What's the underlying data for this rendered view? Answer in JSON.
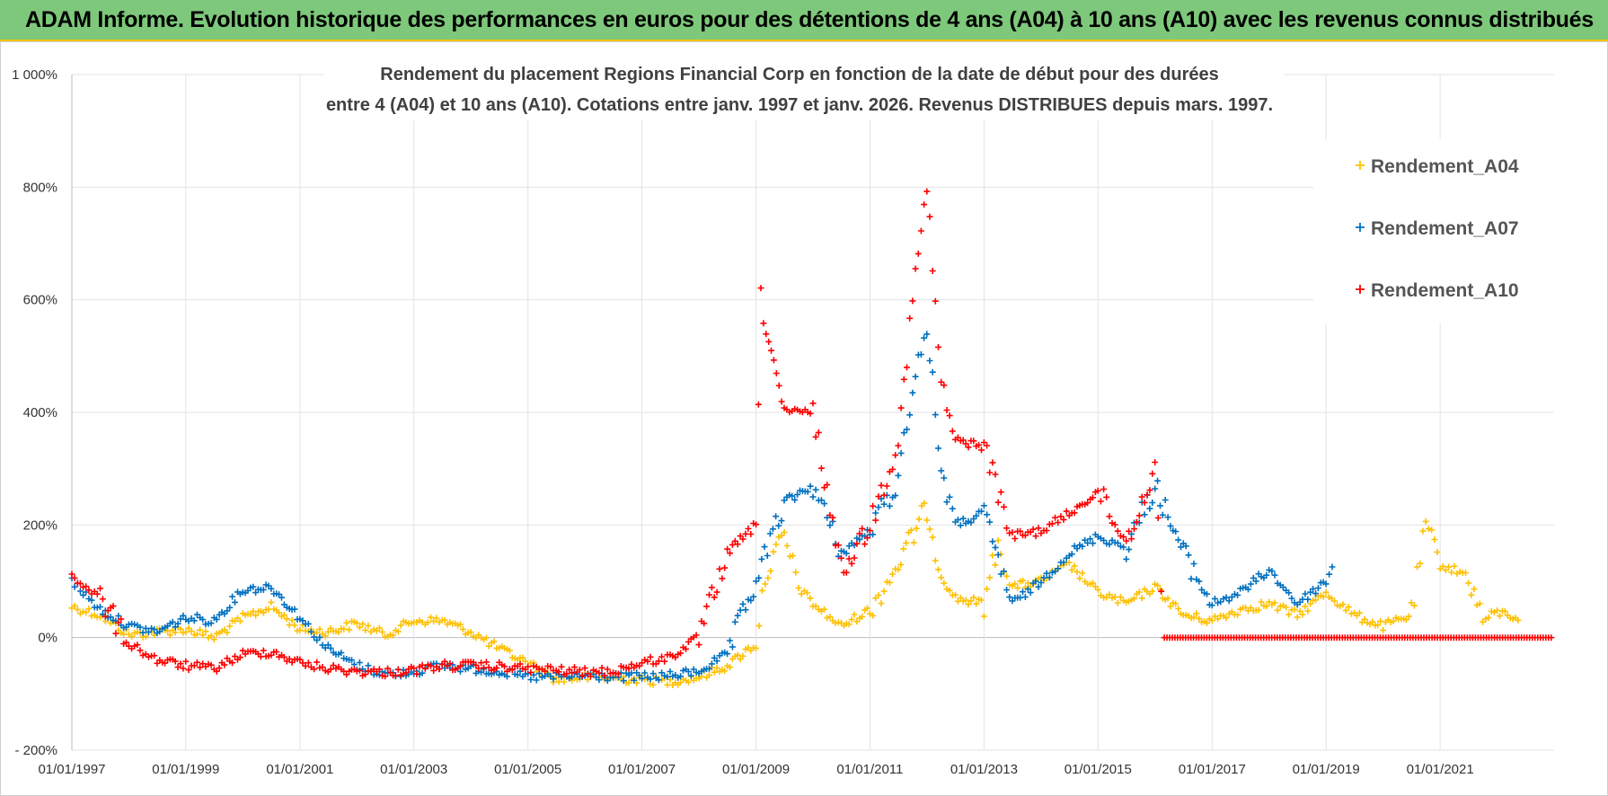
{
  "header": {
    "title": "ADAM Informe. Evolution historique des performances en euros pour des détentions de 4 ans (A04) à 10 ans (A10) avec les revenus connus distribués"
  },
  "colors": {
    "banner": "#7dc87a",
    "banner_line": "#f2c200",
    "A04": "#ffc000",
    "A07": "#0070c0",
    "A10": "#ff0000"
  },
  "chart_data": {
    "type": "scatter",
    "title_lines": [
      "Rendement du placement Regions Financial Corp en fonction de la date de début pour des durées",
      "entre 4 (A04) et 10 ans (A10).  Cotations entre janv. 1997 et janv. 2026. Revenus DISTRIBUES depuis mars. 1997."
    ],
    "xlabel": "",
    "ylabel": "",
    "xlim": [
      "1997-01-01",
      "2023-01-01"
    ],
    "ylim": [
      -200,
      1000
    ],
    "y_ticks": [
      -200,
      0,
      200,
      400,
      600,
      800,
      1000
    ],
    "y_tick_labels": [
      "- 200%",
      "0%",
      "200%",
      "400%",
      "600%",
      "800%",
      "1 000%"
    ],
    "x_tick_labels": [
      "01/01/1997",
      "01/01/1999",
      "01/01/2001",
      "01/01/2003",
      "01/01/2005",
      "01/01/2007",
      "01/01/2009",
      "01/01/2011",
      "01/01/2013",
      "01/01/2015",
      "01/01/2017",
      "01/01/2019",
      "01/01/2021"
    ],
    "grid": true,
    "legend": "top-right",
    "marker": "+",
    "series": [
      {
        "name": "Rendement_A04",
        "points": [
          [
            "1997-01-01",
            55
          ],
          [
            "1997-07-01",
            40
          ],
          [
            "1998-01-01",
            5
          ],
          [
            "1998-07-01",
            10
          ],
          [
            "1999-01-01",
            15
          ],
          [
            "1999-07-01",
            0
          ],
          [
            "2000-01-01",
            35
          ],
          [
            "2000-07-01",
            55
          ],
          [
            "2001-01-01",
            15
          ],
          [
            "2001-07-01",
            10
          ],
          [
            "2002-01-01",
            25
          ],
          [
            "2002-07-01",
            5
          ],
          [
            "2003-01-01",
            30
          ],
          [
            "2003-07-01",
            30
          ],
          [
            "2004-01-01",
            10
          ],
          [
            "2004-07-01",
            -20
          ],
          [
            "2005-01-01",
            -45
          ],
          [
            "2005-07-01",
            -75
          ],
          [
            "2006-01-01",
            -70
          ],
          [
            "2006-07-01",
            -72
          ],
          [
            "2007-01-01",
            -75
          ],
          [
            "2007-07-01",
            -78
          ],
          [
            "2008-01-01",
            -70
          ],
          [
            "2008-07-01",
            -50
          ],
          [
            "2009-01-01",
            -10
          ],
          [
            "2009-03-01",
            110
          ],
          [
            "2009-07-01",
            180
          ],
          [
            "2009-10-01",
            90
          ],
          [
            "2010-01-01",
            60
          ],
          [
            "2010-07-01",
            20
          ],
          [
            "2011-01-01",
            50
          ],
          [
            "2011-07-01",
            130
          ],
          [
            "2012-01-01",
            230
          ],
          [
            "2012-04-01",
            110
          ],
          [
            "2012-07-01",
            70
          ],
          [
            "2013-01-01",
            60
          ],
          [
            "2013-04-01",
            170
          ],
          [
            "2013-07-01",
            90
          ],
          [
            "2014-01-01",
            100
          ],
          [
            "2014-07-01",
            130
          ],
          [
            "2015-01-01",
            80
          ],
          [
            "2015-07-01",
            60
          ],
          [
            "2016-01-01",
            90
          ],
          [
            "2016-07-01",
            40
          ],
          [
            "2017-01-01",
            30
          ],
          [
            "2017-07-01",
            50
          ],
          [
            "2018-01-01",
            60
          ],
          [
            "2018-07-01",
            40
          ],
          [
            "2019-01-01",
            80
          ],
          [
            "2019-07-01",
            40
          ],
          [
            "2020-01-01",
            20
          ],
          [
            "2020-07-01",
            40
          ],
          [
            "2020-10-01",
            200
          ],
          [
            "2021-01-01",
            130
          ],
          [
            "2021-07-01",
            110
          ],
          [
            "2021-10-01",
            30
          ],
          [
            "2022-01-01",
            45
          ],
          [
            "2022-06-01",
            35
          ]
        ]
      },
      {
        "name": "Rendement_A07",
        "points": [
          [
            "1997-01-01",
            100
          ],
          [
            "1997-07-01",
            50
          ],
          [
            "1998-01-01",
            20
          ],
          [
            "1998-07-01",
            10
          ],
          [
            "1999-01-01",
            35
          ],
          [
            "1999-07-01",
            30
          ],
          [
            "2000-01-01",
            85
          ],
          [
            "2000-07-01",
            90
          ],
          [
            "2001-01-01",
            35
          ],
          [
            "2001-07-01",
            -20
          ],
          [
            "2002-01-01",
            -50
          ],
          [
            "2002-07-01",
            -65
          ],
          [
            "2003-01-01",
            -60
          ],
          [
            "2003-07-01",
            -50
          ],
          [
            "2004-01-01",
            -55
          ],
          [
            "2004-07-01",
            -60
          ],
          [
            "2005-01-01",
            -70
          ],
          [
            "2005-07-01",
            -70
          ],
          [
            "2006-01-01",
            -68
          ],
          [
            "2006-07-01",
            -70
          ],
          [
            "2007-01-01",
            -70
          ],
          [
            "2007-07-01",
            -68
          ],
          [
            "2008-01-01",
            -60
          ],
          [
            "2008-07-01",
            -30
          ],
          [
            "2009-01-01",
            100
          ],
          [
            "2009-07-01",
            240
          ],
          [
            "2010-01-01",
            270
          ],
          [
            "2010-07-01",
            150
          ],
          [
            "2011-01-01",
            190
          ],
          [
            "2011-07-01",
            280
          ],
          [
            "2011-10-01",
            450
          ],
          [
            "2012-01-01",
            550
          ],
          [
            "2012-04-01",
            300
          ],
          [
            "2012-07-01",
            200
          ],
          [
            "2013-01-01",
            220
          ],
          [
            "2013-07-01",
            60
          ],
          [
            "2014-01-01",
            100
          ],
          [
            "2014-07-01",
            150
          ],
          [
            "2015-01-01",
            180
          ],
          [
            "2015-07-01",
            160
          ],
          [
            "2016-01-01",
            270
          ],
          [
            "2016-07-01",
            150
          ],
          [
            "2017-01-01",
            60
          ],
          [
            "2017-07-01",
            80
          ],
          [
            "2018-01-01",
            120
          ],
          [
            "2018-07-01",
            60
          ],
          [
            "2019-01-01",
            100
          ],
          [
            "2019-03-01",
            140
          ]
        ]
      },
      {
        "name": "Rendement_A10",
        "points": [
          [
            "1997-01-01",
            110
          ],
          [
            "1997-07-01",
            70
          ],
          [
            "1998-01-01",
            -10
          ],
          [
            "1998-07-01",
            -40
          ],
          [
            "1999-01-01",
            -50
          ],
          [
            "1999-07-01",
            -55
          ],
          [
            "2000-01-01",
            -30
          ],
          [
            "2000-07-01",
            -25
          ],
          [
            "2001-01-01",
            -45
          ],
          [
            "2001-07-01",
            -55
          ],
          [
            "2002-01-01",
            -60
          ],
          [
            "2002-07-01",
            -62
          ],
          [
            "2003-01-01",
            -58
          ],
          [
            "2003-07-01",
            -50
          ],
          [
            "2004-01-01",
            -50
          ],
          [
            "2004-07-01",
            -52
          ],
          [
            "2005-01-01",
            -55
          ],
          [
            "2005-07-01",
            -58
          ],
          [
            "2006-01-01",
            -62
          ],
          [
            "2006-07-01",
            -60
          ],
          [
            "2007-01-01",
            -45
          ],
          [
            "2007-07-01",
            -35
          ],
          [
            "2008-01-01",
            0
          ],
          [
            "2008-07-01",
            150
          ],
          [
            "2009-01-01",
            200
          ],
          [
            "2009-02-01",
            600
          ],
          [
            "2009-07-01",
            400
          ],
          [
            "2010-01-01",
            400
          ],
          [
            "2010-07-01",
            120
          ],
          [
            "2011-01-01",
            200
          ],
          [
            "2011-07-01",
            350
          ],
          [
            "2011-10-01",
            600
          ],
          [
            "2012-01-01",
            800
          ],
          [
            "2012-04-01",
            450
          ],
          [
            "2012-07-01",
            350
          ],
          [
            "2013-01-01",
            340
          ],
          [
            "2013-07-01",
            180
          ],
          [
            "2014-01-01",
            190
          ],
          [
            "2014-07-01",
            220
          ],
          [
            "2015-01-01",
            260
          ],
          [
            "2015-07-01",
            170
          ],
          [
            "2016-01-01",
            300
          ],
          [
            "2016-03-01",
            0
          ],
          [
            "2017-01-01",
            0
          ],
          [
            "2018-01-01",
            0
          ],
          [
            "2019-01-01",
            0
          ],
          [
            "2020-01-01",
            0
          ],
          [
            "2021-01-01",
            0
          ],
          [
            "2022-01-01",
            0
          ],
          [
            "2022-12-31",
            0
          ]
        ]
      }
    ]
  }
}
